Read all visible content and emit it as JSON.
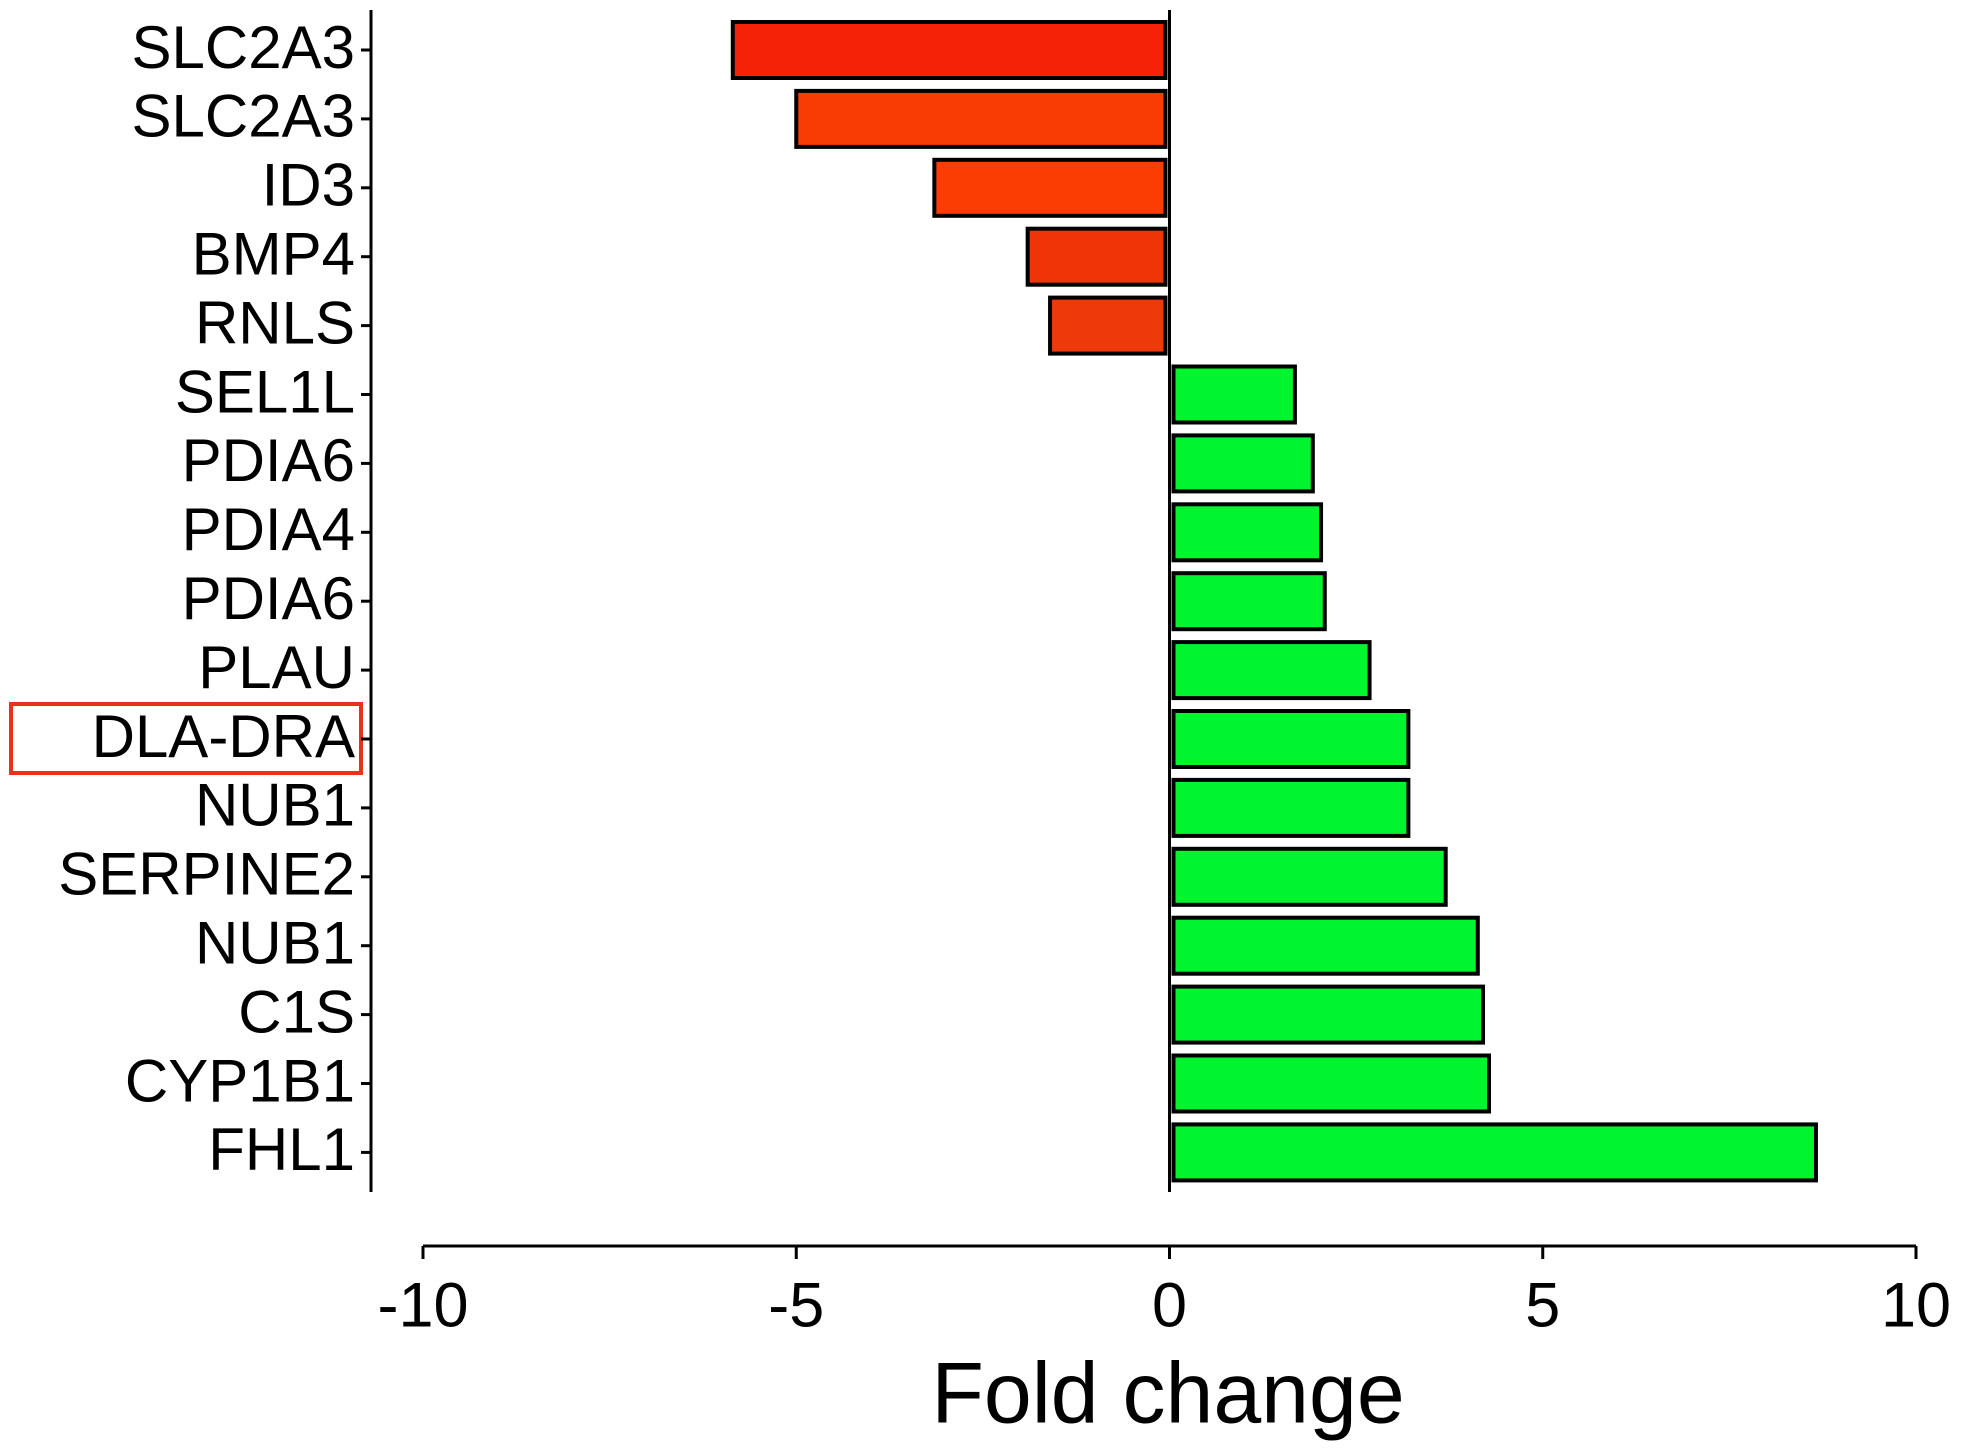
{
  "chart_data": {
    "type": "bar",
    "orientation": "horizontal",
    "categories": [
      "SLC2A3",
      "SLC2A3",
      "ID3",
      "BMP4",
      "RNLS",
      "SEL1L",
      "PDIA6",
      "PDIA4",
      "PDIA6",
      "PLAU",
      "DLA-DRA",
      "NUB1",
      "SERPINE2",
      "NUB1",
      "C1S",
      "CYP1B1",
      "FHL1"
    ],
    "values": [
      -5.85,
      -5.0,
      -3.15,
      -1.9,
      -1.6,
      1.68,
      1.92,
      2.03,
      2.08,
      2.68,
      3.2,
      3.2,
      3.7,
      4.13,
      4.2,
      4.28,
      8.66
    ],
    "colors": [
      "#f52208",
      "#f83c04",
      "#fc3d03",
      "#ef3408",
      "#ee3a0a",
      "#00f52f",
      "#00f52f",
      "#00f52f",
      "#00f52f",
      "#00f52f",
      "#00f52f",
      "#00f52f",
      "#00f52f",
      "#00f52f",
      "#00f52f",
      "#00f52f",
      "#00f52f"
    ],
    "xlabel": "Fold change",
    "xlim": [
      -10,
      10
    ],
    "xticks": [
      -10,
      -5,
      0,
      5,
      10
    ]
  }
}
